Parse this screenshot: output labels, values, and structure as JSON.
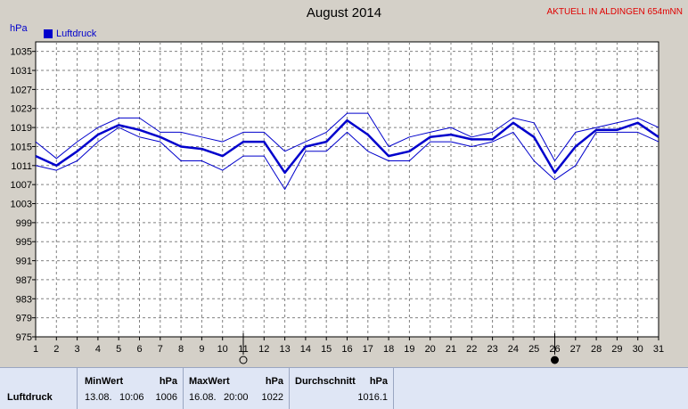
{
  "header": {
    "title": "August 2014",
    "station": "AKTUELL IN ALDINGEN 654mNN",
    "unit": "hPa",
    "legend_label": "Luftdruck"
  },
  "chart_data": {
    "type": "line",
    "title": "August 2014",
    "ylabel": "hPa",
    "x": [
      1,
      2,
      3,
      4,
      5,
      6,
      7,
      8,
      9,
      10,
      11,
      12,
      13,
      14,
      15,
      16,
      17,
      18,
      19,
      20,
      21,
      22,
      23,
      24,
      25,
      26,
      27,
      28,
      29,
      30,
      31
    ],
    "yticks": [
      975,
      979,
      983,
      987,
      991,
      995,
      999,
      1003,
      1007,
      1011,
      1015,
      1019,
      1023,
      1027,
      1031,
      1035
    ],
    "ylim": [
      975,
      1037
    ],
    "xlim": [
      1,
      31
    ],
    "grid": true,
    "legend": "top-left",
    "moon_markers": [
      {
        "day": 11,
        "phase": "full-moon"
      },
      {
        "day": 26,
        "phase": "new-moon"
      }
    ],
    "series": [
      {
        "name": "Luftdruck",
        "role": "mean",
        "values": [
          1013,
          1011,
          1014,
          1017.5,
          1019.5,
          1018.5,
          1017,
          1015,
          1014.5,
          1013,
          1016,
          1016,
          1009.5,
          1015,
          1016,
          1020.5,
          1017.5,
          1013,
          1014,
          1017,
          1017.5,
          1016.5,
          1016.5,
          1020,
          1017,
          1009.5,
          1015,
          1018.5,
          1018.5,
          1020,
          1017
        ]
      },
      {
        "role": "max",
        "values": [
          1016,
          1012.5,
          1016,
          1019,
          1021,
          1021,
          1018,
          1018,
          1017,
          1016,
          1018,
          1018,
          1014,
          1016,
          1018,
          1022,
          1022,
          1015,
          1017,
          1018,
          1019,
          1017,
          1018,
          1021,
          1020,
          1012,
          1018,
          1019,
          1020,
          1021,
          1019
        ]
      },
      {
        "role": "min",
        "values": [
          1011,
          1010,
          1012,
          1016,
          1019,
          1017,
          1016,
          1012,
          1012,
          1010,
          1013,
          1013,
          1006,
          1014,
          1014,
          1018,
          1014,
          1012,
          1012,
          1016,
          1016,
          1015,
          1016,
          1018,
          1012,
          1008,
          1011,
          1018,
          1018,
          1018,
          1016
        ]
      }
    ],
    "colors": {
      "line": "#0000cc",
      "grid": "#808080",
      "plot_bg": "#ffffff",
      "month_marker": "#000000"
    }
  },
  "stats": {
    "row_label": "Luftdruck",
    "min": {
      "header": "MinWert",
      "unit": "hPa",
      "date": "13.08.",
      "time": "10:06",
      "value": "1006"
    },
    "max": {
      "header": "MaxWert",
      "unit": "hPa",
      "date": "16.08.",
      "time": "20:00",
      "value": "1022"
    },
    "avg": {
      "header": "Durchschnitt",
      "unit": "hPa",
      "value": "1016.1"
    }
  }
}
